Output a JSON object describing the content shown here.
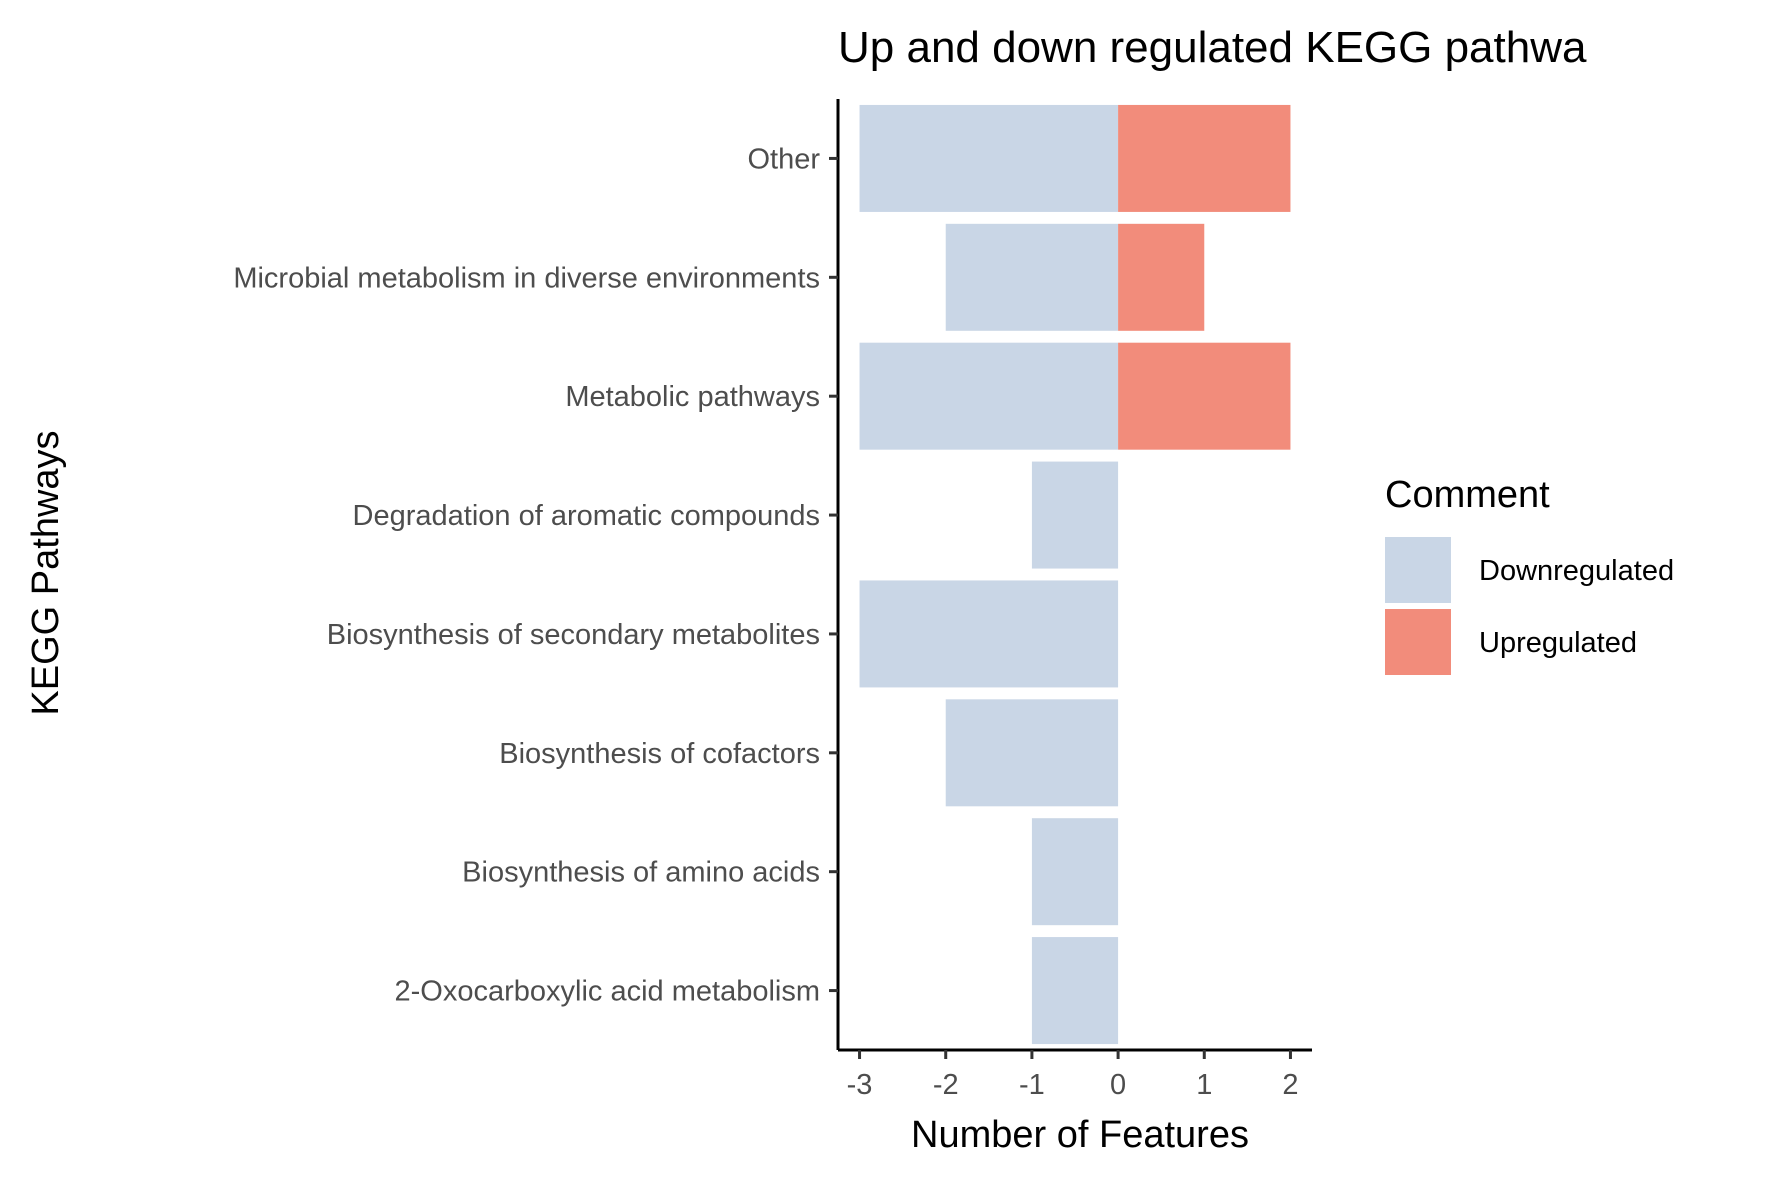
{
  "chart_data": {
    "type": "bar",
    "orientation": "horizontal",
    "stacked": true,
    "title": "Up and down regulated KEGG pathwa",
    "xlabel": "Number of Features",
    "ylabel": "KEGG Pathways",
    "xlim": [
      -3.25,
      2.25
    ],
    "xticks": [
      "-3",
      "-2",
      "-1",
      "0",
      "1",
      "2"
    ],
    "categories": [
      "Other",
      "Microbial metabolism in diverse environments",
      "Metabolic pathways",
      "Degradation of aromatic compounds",
      "Biosynthesis of secondary metabolites",
      "Biosynthesis of cofactors",
      "Biosynthesis of amino acids",
      "2-Oxocarboxylic acid metabolism"
    ],
    "series": [
      {
        "name": "Downregulated",
        "color": "#c9d6e6",
        "values": [
          -3,
          -2,
          -3,
          -1,
          -3,
          -2,
          -1,
          -1
        ]
      },
      {
        "name": "Upregulated",
        "color": "#f28c7b",
        "values": [
          2,
          1,
          2,
          0,
          0,
          0,
          0,
          0
        ]
      }
    ],
    "legend": {
      "title": "Comment",
      "position": "right"
    },
    "grid": false
  }
}
